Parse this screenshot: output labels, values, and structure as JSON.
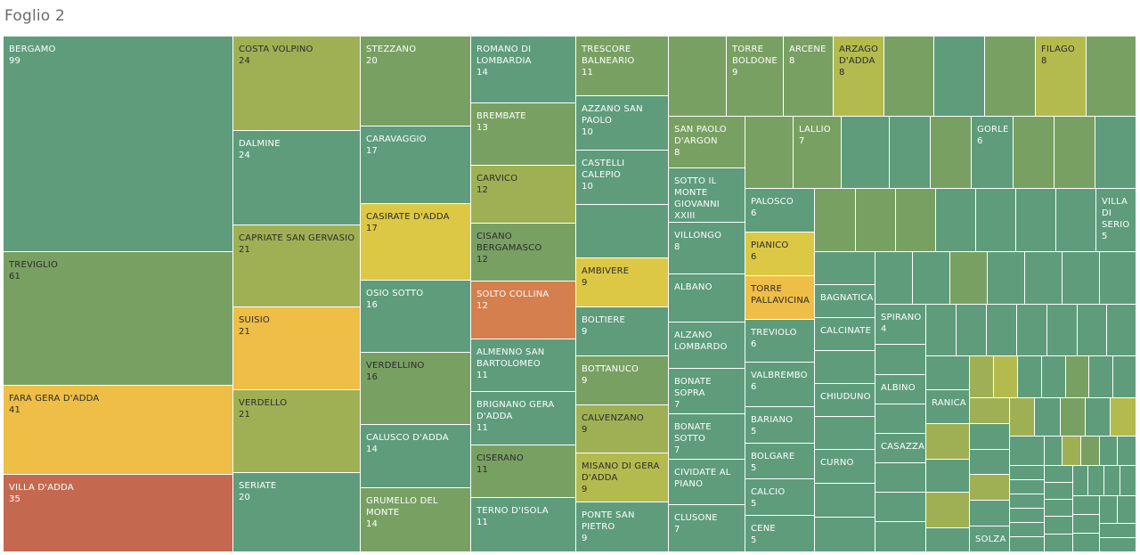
{
  "sheet": {
    "title": "Foglio 2"
  },
  "colors": {
    "teal": "#5e9c7c",
    "green": "#79a063",
    "olive": "#9fb054",
    "lime": "#b3bb4e",
    "yellow": "#dcc844",
    "amber": "#eebe47",
    "orange": "#d47f4d",
    "red": "#c4694f"
  },
  "chart_data": {
    "type": "treemap",
    "title": "",
    "measure": "count",
    "items": [
      {
        "name": "BERGAMO",
        "value": 99
      },
      {
        "name": "TREVIGLIO",
        "value": 61
      },
      {
        "name": "FARA GERA D'ADDA",
        "value": 41
      },
      {
        "name": "VILLA D'ADDA",
        "value": 35
      },
      {
        "name": "COSTA VOLPINO",
        "value": 24
      },
      {
        "name": "DALMINE",
        "value": 24
      },
      {
        "name": "CAPRIATE SAN GERVASIO",
        "value": 21
      },
      {
        "name": "SUISIO",
        "value": 21
      },
      {
        "name": "VERDELLO",
        "value": 21
      },
      {
        "name": "SERIATE",
        "value": 20
      },
      {
        "name": "STEZZANO",
        "value": 20
      },
      {
        "name": "CARAVAGGIO",
        "value": 17
      },
      {
        "name": "CASIRATE D'ADDA",
        "value": 17
      },
      {
        "name": "OSIO SOTTO",
        "value": 16
      },
      {
        "name": "VERDELLINO",
        "value": 16
      },
      {
        "name": "CALUSCO D'ADDA",
        "value": 14
      },
      {
        "name": "GRUMELLO DEL MONTE",
        "value": 14
      },
      {
        "name": "ROMANO DI LOMBARDIA",
        "value": 14
      },
      {
        "name": "BREMBATE",
        "value": 13
      },
      {
        "name": "CARVICO",
        "value": 12
      },
      {
        "name": "CISANO BERGAMASCO",
        "value": 12
      },
      {
        "name": "SOLTO COLLINA",
        "value": 12
      },
      {
        "name": "ALMENNO SAN BARTOLOMEO",
        "value": 11
      },
      {
        "name": "BRIGNANO GERA D'ADDA",
        "value": 11
      },
      {
        "name": "CISERANO",
        "value": 11
      },
      {
        "name": "TERNO D'ISOLA",
        "value": 11
      },
      {
        "name": "TRESCORE BALNEARIO",
        "value": 11
      },
      {
        "name": "AZZANO SAN PAOLO",
        "value": 10
      },
      {
        "name": "CASTELLI CALEPIO",
        "value": 10
      },
      {
        "name": "AMBIVERE",
        "value": 9
      },
      {
        "name": "BOLTIERE",
        "value": 9
      },
      {
        "name": "BOTTANUCO",
        "value": 9
      },
      {
        "name": "CALVENZANO",
        "value": 9
      },
      {
        "name": "MISANO DI GERA D'ADDA",
        "value": 9
      },
      {
        "name": "PONTE SAN PIETRO",
        "value": 9
      },
      {
        "name": "TORRE BOLDONE",
        "value": 9
      },
      {
        "name": "ARCENE",
        "value": 8
      },
      {
        "name": "ARZAGO D'ADDA",
        "value": 8
      },
      {
        "name": "FILAGO",
        "value": 8
      },
      {
        "name": "SAN PAOLO D'ARGON",
        "value": 8
      },
      {
        "name": "VILLONGO",
        "value": 8
      },
      {
        "name": "LALLIO",
        "value": 7
      },
      {
        "name": "SOTTO IL MONTE GIOVANNI XXIII",
        "value": null
      },
      {
        "name": "ALBANO",
        "value": null
      },
      {
        "name": "ALZANO LOMBARDO",
        "value": null
      },
      {
        "name": "BONATE SOPRA",
        "value": 7
      },
      {
        "name": "BONATE SOTTO",
        "value": 7
      },
      {
        "name": "CIVIDATE AL PIANO",
        "value": null
      },
      {
        "name": "CLUSONE",
        "value": 7
      },
      {
        "name": "GORLE",
        "value": 6
      },
      {
        "name": "PALOSCO",
        "value": 6
      },
      {
        "name": "PIANICO",
        "value": 6
      },
      {
        "name": "TORRE PALLAVICINA",
        "value": null
      },
      {
        "name": "TREVIOLO",
        "value": 6
      },
      {
        "name": "VALBREMBO",
        "value": 6
      },
      {
        "name": "BARIANO",
        "value": 5
      },
      {
        "name": "BOLGARE",
        "value": 5
      },
      {
        "name": "CALCIO",
        "value": 5
      },
      {
        "name": "CENE",
        "value": 5
      },
      {
        "name": "VILLA DI SERIO",
        "value": 5
      },
      {
        "name": "BAGNATICA",
        "value": null
      },
      {
        "name": "CALCINATE",
        "value": null
      },
      {
        "name": "CHIUDUNO",
        "value": null
      },
      {
        "name": "CURNO",
        "value": null
      },
      {
        "name": "SPIRANO",
        "value": 4
      },
      {
        "name": "ALBINO",
        "value": null
      },
      {
        "name": "CASAZZA",
        "value": null
      },
      {
        "name": "RANICA",
        "value": null
      },
      {
        "name": "SOLZA",
        "value": null
      }
    ]
  }
}
